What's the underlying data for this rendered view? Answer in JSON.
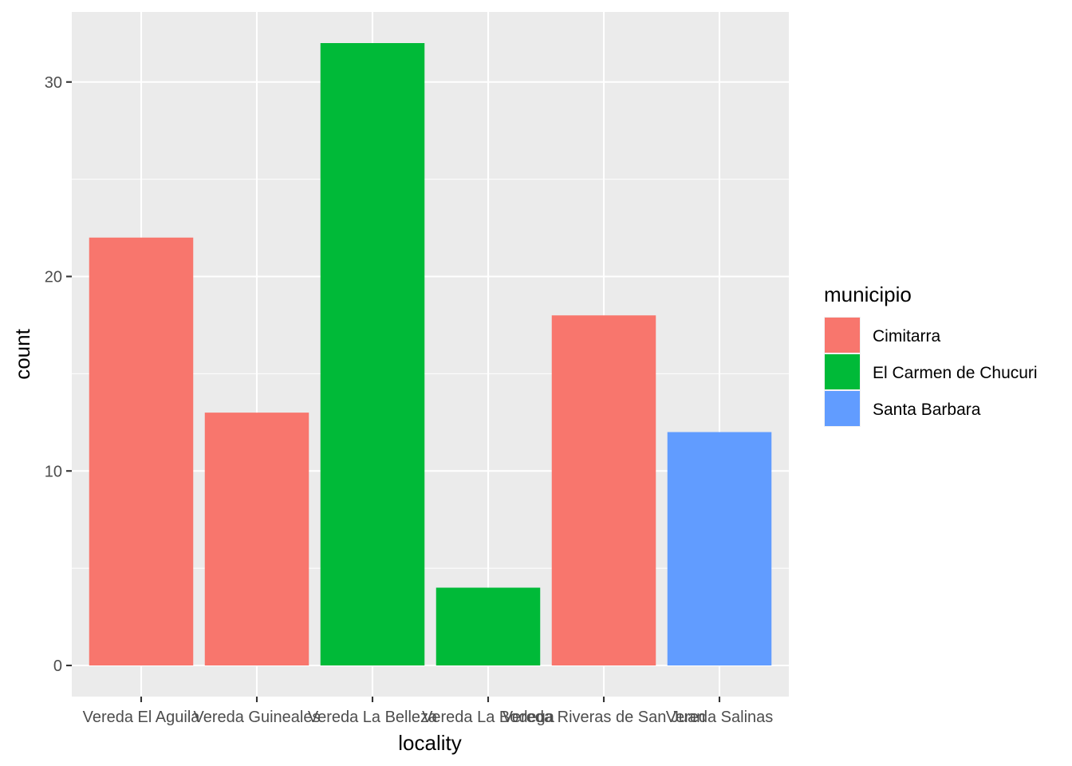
{
  "chart_data": {
    "type": "bar",
    "xlabel": "locality",
    "ylabel": "count",
    "categories": [
      "Vereda El Aguila",
      "Vereda Guineales",
      "Vereda La Belleza",
      "Vereda La Bodega",
      "Vereda Riveras de San Juan",
      "Vereda Salinas"
    ],
    "values": [
      22,
      13,
      32,
      4,
      18,
      12
    ],
    "fill_group": [
      "Cimitarra",
      "Cimitarra",
      "El Carmen de Chucuri",
      "El Carmen de Chucuri",
      "Cimitarra",
      "Santa Barbara"
    ],
    "ylim": [
      -1.6,
      33.6
    ],
    "yticks": [
      0,
      10,
      20,
      30
    ],
    "grid": true,
    "legend": {
      "title": "municipio",
      "position": "right",
      "entries": [
        {
          "label": "Cimitarra",
          "color": "#F8766D"
        },
        {
          "label": "El Carmen de Chucuri",
          "color": "#00BA38"
        },
        {
          "label": "Santa Barbara",
          "color": "#619CFF"
        }
      ]
    }
  },
  "colors": {
    "panel_background": "#EBEBEB",
    "grid_major": "#FFFFFF",
    "tick_text": "#4D4D4D",
    "tick_mark": "#333333"
  }
}
